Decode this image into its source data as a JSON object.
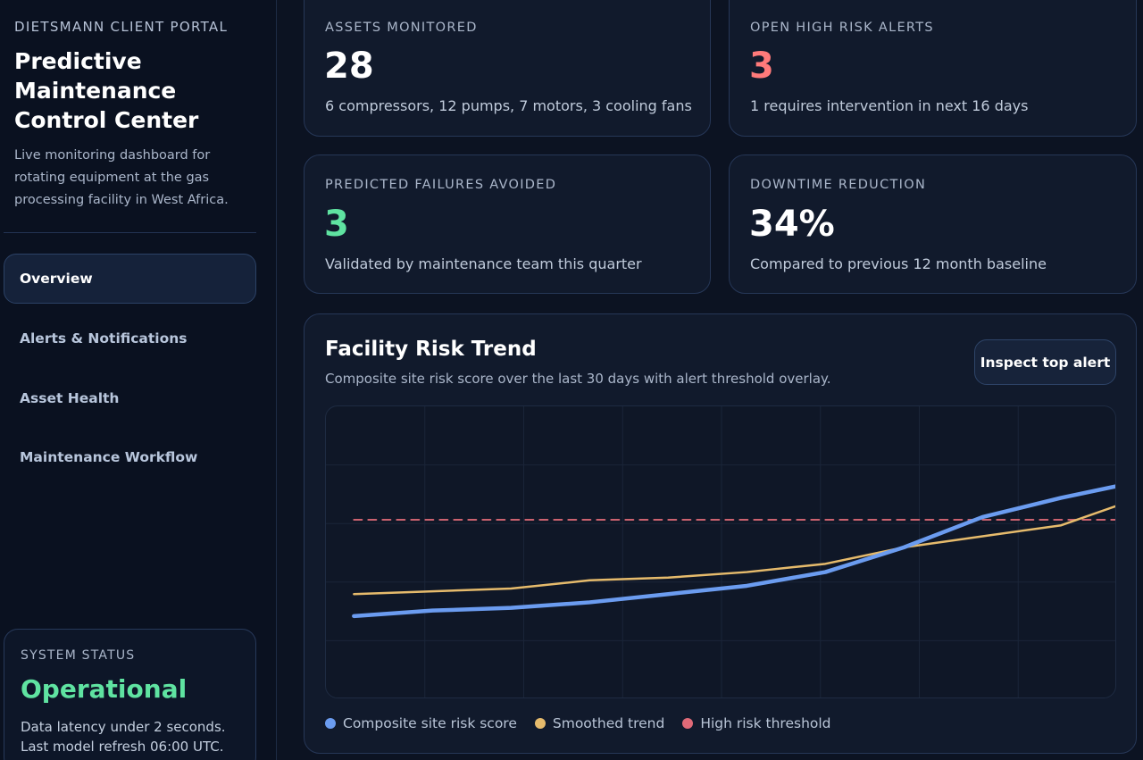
{
  "sidebar": {
    "portal_name": "DIETSMANN CLIENT PORTAL",
    "title": "Predictive Maintenance Control Center",
    "description": "Live monitoring dashboard for rotating equipment at the gas processing facility in West Africa.",
    "nav": [
      {
        "label": "Overview",
        "active": true
      },
      {
        "label": "Alerts & Notifications",
        "active": false
      },
      {
        "label": "Asset Health",
        "active": false
      },
      {
        "label": "Maintenance Workflow",
        "active": false
      }
    ],
    "status": {
      "label": "SYSTEM STATUS",
      "value": "Operational",
      "line1": "Data latency under 2 seconds.",
      "line2": "Last model refresh 06:00 UTC."
    }
  },
  "metrics": [
    {
      "label": "ASSETS MONITORED",
      "value": "28",
      "desc": "6 compressors, 12 pumps, 7 motors, 3 cooling fans"
    },
    {
      "label": "OPEN HIGH RISK ALERTS",
      "value": "3",
      "desc": "1 requires intervention in next 16 days"
    },
    {
      "label": "PREDICTED FAILURES AVOIDED",
      "value": "3",
      "desc": "Validated by maintenance team this quarter"
    },
    {
      "label": "DOWNTIME REDUCTION",
      "value": "34%",
      "desc": "Compared to previous 12 month baseline"
    }
  ],
  "colors": {
    "alert_red": "#ff7a7a",
    "success_green": "#5fe3a1",
    "series_blue": "#6b9cf0",
    "series_amber": "#e6bb6c",
    "threshold_red": "#e06a78"
  },
  "chart": {
    "title": "Facility Risk Trend",
    "subtitle": "Composite site risk score over the last 30 days with alert threshold overlay.",
    "button_label": "Inspect top alert"
  },
  "chart_data": {
    "type": "line",
    "title": "Facility Risk Trend",
    "xlabel": "",
    "ylabel": "",
    "x": [
      1,
      4,
      7,
      10,
      13,
      16,
      19,
      22,
      25,
      28,
      31
    ],
    "xlim": [
      0,
      30
    ],
    "ylim": [
      0,
      100
    ],
    "grid": true,
    "series": [
      {
        "name": "Composite site risk score",
        "color": "#6b9cf0",
        "values": [
          27,
          29,
          30,
          32,
          35,
          38,
          43,
          52,
          63,
          70,
          76
        ]
      },
      {
        "name": "Smoothed trend",
        "color": "#e6bb6c",
        "values": [
          35,
          36,
          37,
          40,
          41,
          43,
          46,
          52,
          56,
          60,
          70
        ]
      },
      {
        "name": "High risk threshold",
        "color": "#e06a78",
        "style": "dashed",
        "values": [
          62,
          62,
          62,
          62,
          62,
          62,
          62,
          62,
          62,
          62,
          62
        ]
      }
    ],
    "legend_position": "bottom-left"
  }
}
